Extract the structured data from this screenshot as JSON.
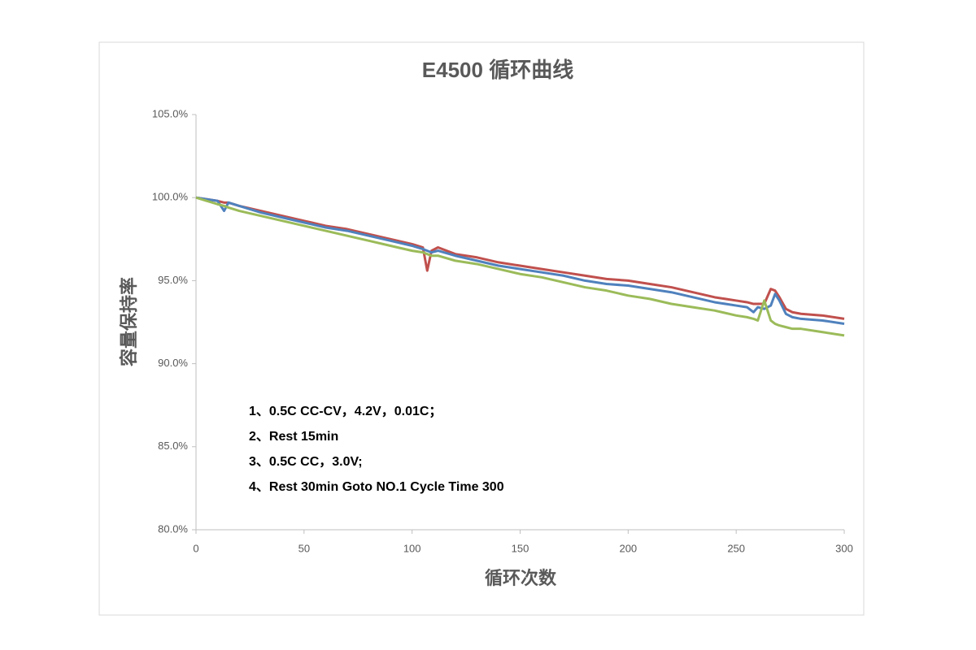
{
  "chart_data": {
    "type": "line",
    "title": "E4500 循环曲线",
    "x_label": "循环次数",
    "y_label": "容量保持率",
    "annotations": [
      "1、0.5C  CC-CV，4.2V，0.01C；",
      "2、Rest  15min",
      "3、0.5C  CC，3.0V;",
      "4、Rest  30min  Goto NO.1 Cycle Time 300"
    ],
    "x": [
      0,
      5,
      10,
      13,
      15,
      20,
      30,
      40,
      50,
      60,
      70,
      80,
      90,
      100,
      105,
      107,
      109,
      112,
      120,
      130,
      140,
      150,
      160,
      170,
      180,
      190,
      200,
      210,
      220,
      230,
      240,
      250,
      255,
      258,
      260,
      263,
      266,
      268,
      270,
      273,
      276,
      280,
      290,
      300
    ],
    "series": [
      {
        "color": "#c0504d",
        "values": [
          100,
          99.9,
          99.8,
          99.7,
          99.7,
          99.5,
          99.2,
          98.9,
          98.6,
          98.3,
          98.1,
          97.8,
          97.5,
          97.2,
          97.0,
          95.6,
          96.8,
          97.0,
          96.6,
          96.4,
          96.1,
          95.9,
          95.7,
          95.5,
          95.3,
          95.1,
          95.0,
          94.8,
          94.6,
          94.3,
          94.0,
          93.8,
          93.7,
          93.6,
          93.6,
          93.6,
          94.5,
          94.4,
          94.0,
          93.3,
          93.1,
          93.0,
          92.9,
          92.7
        ]
      },
      {
        "color": "#4f81bd",
        "values": [
          100,
          99.9,
          99.8,
          99.2,
          99.7,
          99.5,
          99.1,
          98.8,
          98.5,
          98.2,
          98.0,
          97.7,
          97.4,
          97.1,
          96.9,
          96.8,
          96.7,
          96.8,
          96.5,
          96.2,
          95.9,
          95.7,
          95.5,
          95.3,
          95.0,
          94.8,
          94.7,
          94.5,
          94.3,
          94.0,
          93.7,
          93.5,
          93.4,
          93.1,
          93.4,
          93.3,
          93.5,
          94.2,
          93.8,
          93.0,
          92.8,
          92.7,
          92.6,
          92.4
        ]
      },
      {
        "color": "#9bbb59",
        "values": [
          100,
          99.8,
          99.6,
          99.5,
          99.4,
          99.2,
          98.9,
          98.6,
          98.3,
          98.0,
          97.7,
          97.4,
          97.1,
          96.8,
          96.7,
          96.6,
          96.5,
          96.5,
          96.2,
          96.0,
          95.7,
          95.4,
          95.2,
          94.9,
          94.6,
          94.4,
          94.1,
          93.9,
          93.6,
          93.4,
          93.2,
          92.9,
          92.8,
          92.7,
          92.6,
          93.8,
          92.6,
          92.4,
          92.3,
          92.2,
          92.1,
          92.1,
          91.9,
          91.7
        ]
      }
    ],
    "xlim": [
      0,
      300
    ],
    "xticks": [
      0,
      50,
      100,
      150,
      200,
      250,
      300
    ],
    "ylim": [
      80,
      105
    ],
    "yticks": [
      {
        "value": 80,
        "label": "80.0%"
      },
      {
        "value": 85,
        "label": "85.0%"
      },
      {
        "value": 90,
        "label": "90.0%"
      },
      {
        "value": 95,
        "label": "95.0%"
      },
      {
        "value": 100,
        "label": "100.0%"
      },
      {
        "value": 105,
        "label": "105.0%"
      }
    ]
  }
}
